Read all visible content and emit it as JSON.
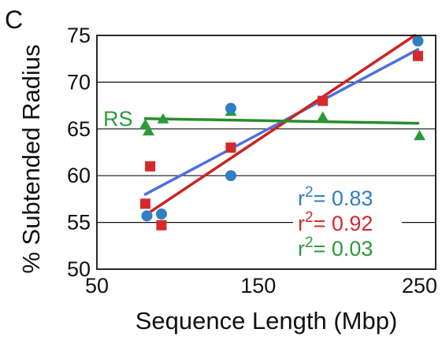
{
  "chart_data": {
    "type": "scatter",
    "panel_label": "C",
    "xlabel": "Sequence Length (Mbp)",
    "ylabel": "% Subtended Radius",
    "xlim": [
      50,
      260
    ],
    "ylim": [
      50,
      75
    ],
    "xticks": [
      50,
      150,
      250
    ],
    "yticks": [
      50,
      55,
      60,
      65,
      70,
      75
    ],
    "grid": "horizontal",
    "series": [
      {
        "marker": "circle",
        "color": "#2f7fc1",
        "line_color": "#4f6fe0",
        "points": [
          [
            81,
            55.7
          ],
          [
            90,
            55.9
          ],
          [
            133,
            67.2
          ],
          [
            133,
            60.0
          ],
          [
            249,
            74.4
          ]
        ],
        "fit": [
          [
            80,
            58.0
          ],
          [
            249,
            73.5
          ]
        ],
        "r2_label": "r",
        "r2_sup": "2",
        "r2_value": "= 0.83"
      },
      {
        "marker": "square",
        "color": "#d42a2a",
        "line_color": "#cc2222",
        "points": [
          [
            80,
            57.0
          ],
          [
            83,
            61.0
          ],
          [
            90,
            54.7
          ],
          [
            133,
            63.0
          ],
          [
            190,
            68.0
          ],
          [
            249,
            72.8
          ]
        ],
        "fit": [
          [
            82,
            56.0
          ],
          [
            247,
            75.0
          ]
        ],
        "r2_label": "r",
        "r2_sup": "2",
        "r2_value": "= 0.92"
      },
      {
        "name": "RS",
        "marker": "triangle",
        "color": "#2a9a3a",
        "line_color": "#2a8c2a",
        "points": [
          [
            80,
            65.5
          ],
          [
            82,
            64.8
          ],
          [
            91,
            66.1
          ],
          [
            133,
            66.9
          ],
          [
            190,
            66.3
          ],
          [
            250,
            64.3
          ]
        ],
        "fit": [
          [
            80,
            66.1
          ],
          [
            249,
            65.6
          ]
        ],
        "r2_label": "r",
        "r2_sup": "2",
        "r2_value": "= 0.03"
      }
    ]
  }
}
